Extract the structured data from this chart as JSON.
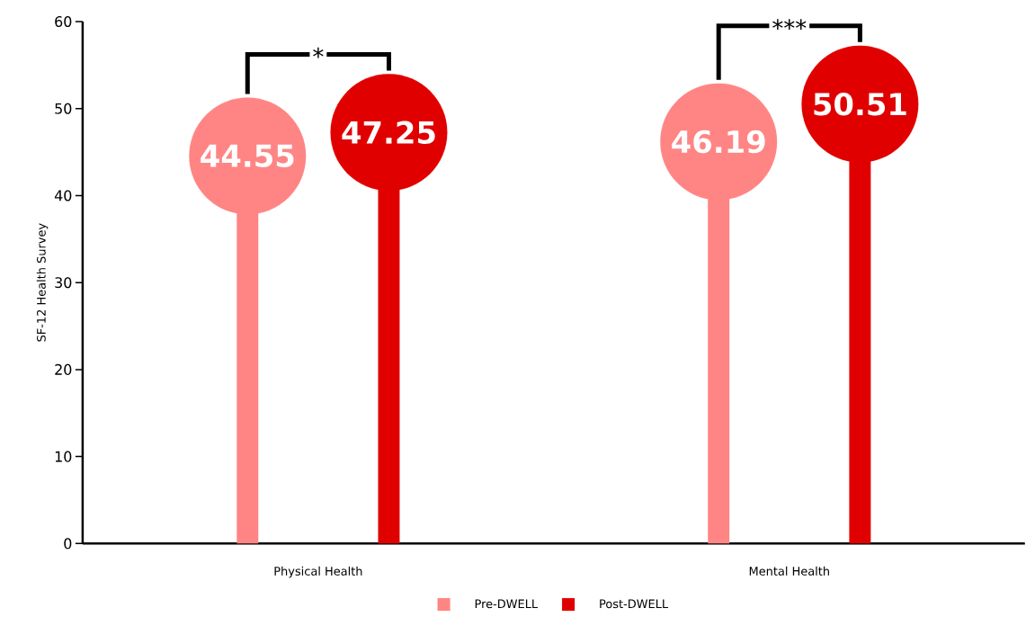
{
  "chart_data": {
    "type": "lollipop",
    "ylabel": "SF-12 Health Survey",
    "categories": [
      "Physical Health",
      "Mental Health"
    ],
    "series": [
      {
        "name": "Pre-DWELL",
        "color": "#ff8585",
        "values": [
          44.55,
          46.19
        ],
        "value_labels": [
          "44.55",
          "46.19"
        ]
      },
      {
        "name": "Post-DWELL",
        "color": "#e00000",
        "values": [
          47.25,
          50.51
        ],
        "value_labels": [
          "47.25",
          "50.51"
        ]
      }
    ],
    "annotations": [
      "*",
      "***"
    ],
    "ylim": [
      0,
      60
    ],
    "yticks": [
      0,
      10,
      20,
      30,
      40,
      50,
      60
    ],
    "marker": "circle",
    "grid": false,
    "legend": "bottom"
  }
}
